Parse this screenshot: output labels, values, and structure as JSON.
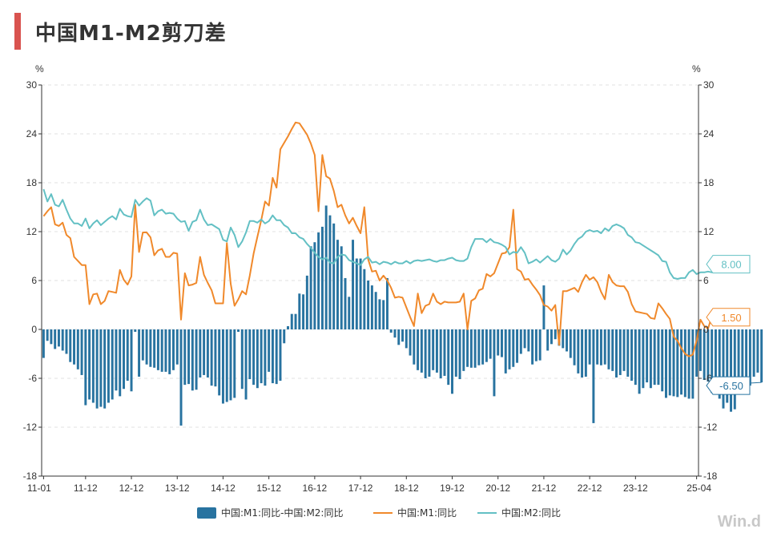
{
  "title": "中国M1-M2剪刀差",
  "watermark": "Win.d",
  "colors": {
    "accent": "#d9534f",
    "bar": "#2873a0",
    "m1": "#f0892b",
    "m2": "#63c0c4",
    "grid": "#e2e2e2",
    "axis": "#333333"
  },
  "chart_data": {
    "type": "bar+line",
    "title": "中国M1-M2剪刀差",
    "y_unit_left": "%",
    "y_unit_right": "%",
    "ylim": [
      -18,
      30
    ],
    "yticks": [
      30,
      24,
      18,
      12,
      6,
      0,
      -6,
      -12,
      -18
    ],
    "x_start": "2011-01",
    "x_end": "2025-04",
    "xticks": [
      "11-01",
      "11-12",
      "12-12",
      "13-12",
      "14-12",
      "15-12",
      "16-12",
      "17-12",
      "18-12",
      "19-12",
      "20-12",
      "21-12",
      "22-12",
      "23-12",
      "25-04"
    ],
    "grid": "horizontal dashed",
    "legend": "bottom-center",
    "series": [
      {
        "name": "中国:M1:同比-中国:M2:同比",
        "type": "bar",
        "values": [
          -3.5,
          -1.4,
          -1.8,
          -2.4,
          -2.1,
          -2.6,
          -3.0,
          -4.0,
          -4.3,
          -4.9,
          -5.6,
          -9.3,
          -8.6,
          -9.0,
          -9.7,
          -9.5,
          -9.7,
          -9.0,
          -8.6,
          -7.5,
          -8.2,
          -7.3,
          -6.3,
          -7.6,
          -0.3,
          -5.8,
          -3.8,
          -4.3,
          -4.6,
          -4.7,
          -5.0,
          -5.2,
          -5.2,
          -5.5,
          -5.0,
          -4.3,
          -11.8,
          -6.8,
          -6.7,
          -7.5,
          -7.4,
          -5.9,
          -5.6,
          -5.9,
          -6.9,
          -7.0,
          -8.1,
          -9.1,
          -8.9,
          -8.7,
          -8.4,
          -0.3,
          -7.3,
          -8.6,
          -6.1,
          -6.8,
          -7.2,
          -6.6,
          -6.9,
          -5.2,
          -6.6,
          -6.7,
          -6.3,
          -1.7,
          0.4,
          1.9,
          1.9,
          4.4,
          4.3,
          6.6,
          10.2,
          10.7,
          11.9,
          12.6,
          15.2,
          14.0,
          13.0,
          11.0,
          10.2,
          6.3,
          4.0,
          11.0,
          8.7,
          8.7,
          7.4,
          6.0,
          5.4,
          4.6,
          3.7,
          3.6,
          6.3,
          -0.4,
          -1.0,
          -1.9,
          -1.5,
          -2.3,
          -3.2,
          -4.3,
          -5.0,
          -5.3,
          -6.0,
          -5.8,
          -5.0,
          -5.3,
          -6.0,
          -5.7,
          -6.8,
          -7.9,
          -5.8,
          -6.1,
          -5.1,
          -4.6,
          -4.7,
          -4.7,
          -4.4,
          -4.3,
          -4.0,
          -3.6,
          -8.2,
          -3.2,
          -3.4,
          -5.4,
          -4.9,
          -4.6,
          -4.1,
          -3.0,
          -2.3,
          -2.7,
          -4.3,
          -3.9,
          -3.8,
          5.4,
          -2.6,
          -1.8,
          -1.2,
          -2.0,
          -2.3,
          -2.7,
          -3.5,
          -4.4,
          -5.4,
          -5.9,
          -5.8,
          -4.3,
          -11.5,
          -4.3,
          -4.4,
          -4.3,
          -4.9,
          -5.1,
          -5.9,
          -5.6,
          -5.1,
          -5.8,
          -6.3,
          -6.8,
          -7.9,
          -7.2,
          -6.5,
          -7.2,
          -6.8,
          -6.8,
          -7.6,
          -8.4,
          -8.1,
          -8.2,
          -8.3,
          -8.0,
          -8.3,
          -8.5,
          -8.5,
          -5.8,
          -5.1,
          -6.2,
          -6.4,
          -7.8,
          -7.8,
          -8.5,
          -9.7,
          -9.0,
          -10.1,
          -9.8,
          -7.8,
          -6.0,
          -6.1,
          -6.9,
          -5.8,
          -5.3,
          -6.5
        ]
      },
      {
        "name": "中国:M1:同比",
        "type": "line",
        "values": [
          13.9,
          14.5,
          15.0,
          12.9,
          12.7,
          13.1,
          11.6,
          11.2,
          8.9,
          8.4,
          7.9,
          7.9,
          3.1,
          4.3,
          4.4,
          3.1,
          3.5,
          4.7,
          4.6,
          4.5,
          7.3,
          6.1,
          5.5,
          6.5,
          15.3,
          9.5,
          11.9,
          11.9,
          11.3,
          9.1,
          9.7,
          9.9,
          8.9,
          8.9,
          9.4,
          9.3,
          1.2,
          6.9,
          5.4,
          5.5,
          5.7,
          8.9,
          6.7,
          5.7,
          4.8,
          3.2,
          3.2,
          3.2,
          10.6,
          5.6,
          2.9,
          3.7,
          4.7,
          4.3,
          6.6,
          9.3,
          11.4,
          13.4,
          15.7,
          15.2,
          18.6,
          17.4,
          22.1,
          22.9,
          23.7,
          24.6,
          25.4,
          25.3,
          24.6,
          23.9,
          22.8,
          21.4,
          14.5,
          21.4,
          18.8,
          18.5,
          17.0,
          15.0,
          15.3,
          14.0,
          13.0,
          13.7,
          12.7,
          11.8,
          15.0,
          8.6,
          7.1,
          7.2,
          6.0,
          6.6,
          6.0,
          5.1,
          3.9,
          4.0,
          3.9,
          2.7,
          1.5,
          0.4,
          4.4,
          2.0,
          2.9,
          3.1,
          4.4,
          3.4,
          3.1,
          3.4,
          3.3,
          3.3,
          3.3,
          3.4,
          4.4,
          0.0,
          3.5,
          3.8,
          4.8,
          5.0,
          6.8,
          6.5,
          6.9,
          8.1,
          9.3,
          9.4,
          10.1,
          14.7,
          7.4,
          7.1,
          6.1,
          6.2,
          5.5,
          4.9,
          4.2,
          3.0,
          2.8,
          2.3,
          3.0,
          -1.9,
          4.7,
          4.7,
          4.9,
          5.1,
          4.6,
          5.8,
          6.7,
          6.1,
          6.4,
          5.8,
          4.6,
          3.7,
          6.7,
          5.8,
          5.4,
          5.3,
          5.3,
          4.6,
          3.1,
          2.2,
          2.1,
          2.0,
          1.9,
          1.4,
          1.3,
          3.2,
          2.6,
          1.9,
          1.3,
          -0.9,
          -1.4,
          -2.3,
          -3.0,
          -3.3,
          -3.1,
          -1.4,
          1.2,
          0.4,
          0.1,
          1.6,
          1.5,
          1.5
        ]
      },
      {
        "name": "中国:M2:同比",
        "type": "line",
        "values": [
          17.2,
          15.7,
          16.6,
          15.3,
          15.1,
          15.9,
          14.7,
          13.6,
          13.0,
          13.0,
          12.7,
          13.6,
          12.4,
          13.0,
          13.4,
          12.8,
          13.2,
          13.6,
          13.9,
          13.5,
          14.8,
          14.1,
          13.9,
          13.8,
          15.9,
          15.2,
          15.7,
          16.1,
          15.8,
          14.0,
          14.5,
          14.7,
          14.2,
          14.3,
          14.2,
          13.6,
          13.2,
          13.3,
          12.1,
          13.2,
          13.4,
          14.7,
          13.5,
          12.8,
          12.9,
          12.6,
          12.3,
          11.0,
          10.8,
          12.5,
          11.6,
          10.1,
          10.8,
          11.9,
          13.3,
          13.3,
          13.1,
          13.5,
          13.0,
          13.3,
          14.0,
          13.4,
          13.4,
          12.8,
          12.5,
          11.8,
          11.8,
          11.3,
          11.1,
          10.5,
          10.0,
          9.4,
          8.9,
          8.6,
          8.8,
          8.2,
          8.1,
          8.9,
          9.2,
          9.1,
          8.5,
          8.3,
          8.1,
          7.9,
          8.6,
          8.9,
          8.2,
          8.3,
          8.0,
          8.3,
          8.2,
          8.0,
          8.3,
          8.1,
          8.1,
          8.4,
          8.1,
          8.4,
          8.5,
          8.4,
          8.5,
          8.6,
          8.4,
          8.3,
          8.5,
          8.5,
          8.7,
          8.8,
          8.5,
          8.4,
          8.4,
          8.7,
          10.1,
          11.1,
          11.1,
          11.1,
          10.7,
          11.1,
          10.7,
          10.6,
          10.4,
          10.1,
          9.2,
          9.5,
          9.4,
          10.1,
          9.4,
          8.1,
          8.3,
          8.6,
          8.2,
          8.6,
          9.0,
          8.5,
          8.3,
          8.7,
          9.8,
          9.2,
          9.7,
          10.5,
          11.1,
          11.4,
          12.0,
          12.2,
          12.0,
          12.1,
          11.8,
          12.4,
          12.1,
          12.7,
          12.9,
          12.7,
          12.4,
          11.6,
          11.3,
          10.7,
          10.6,
          10.3,
          10.0,
          9.7,
          9.4,
          9.1,
          8.4,
          8.3,
          7.0,
          6.3,
          6.2,
          6.3,
          6.3,
          7.0,
          7.3,
          6.8,
          7.0,
          7.0,
          7.1,
          7.0,
          7.0,
          7.3,
          7.6,
          8.0
        ]
      }
    ],
    "callouts": [
      {
        "series": 2,
        "label": "8.00",
        "value": 8.0
      },
      {
        "series": 1,
        "label": "1.50",
        "value": 1.5
      },
      {
        "series": 0,
        "label": "-6.50",
        "value": -6.5
      }
    ]
  }
}
